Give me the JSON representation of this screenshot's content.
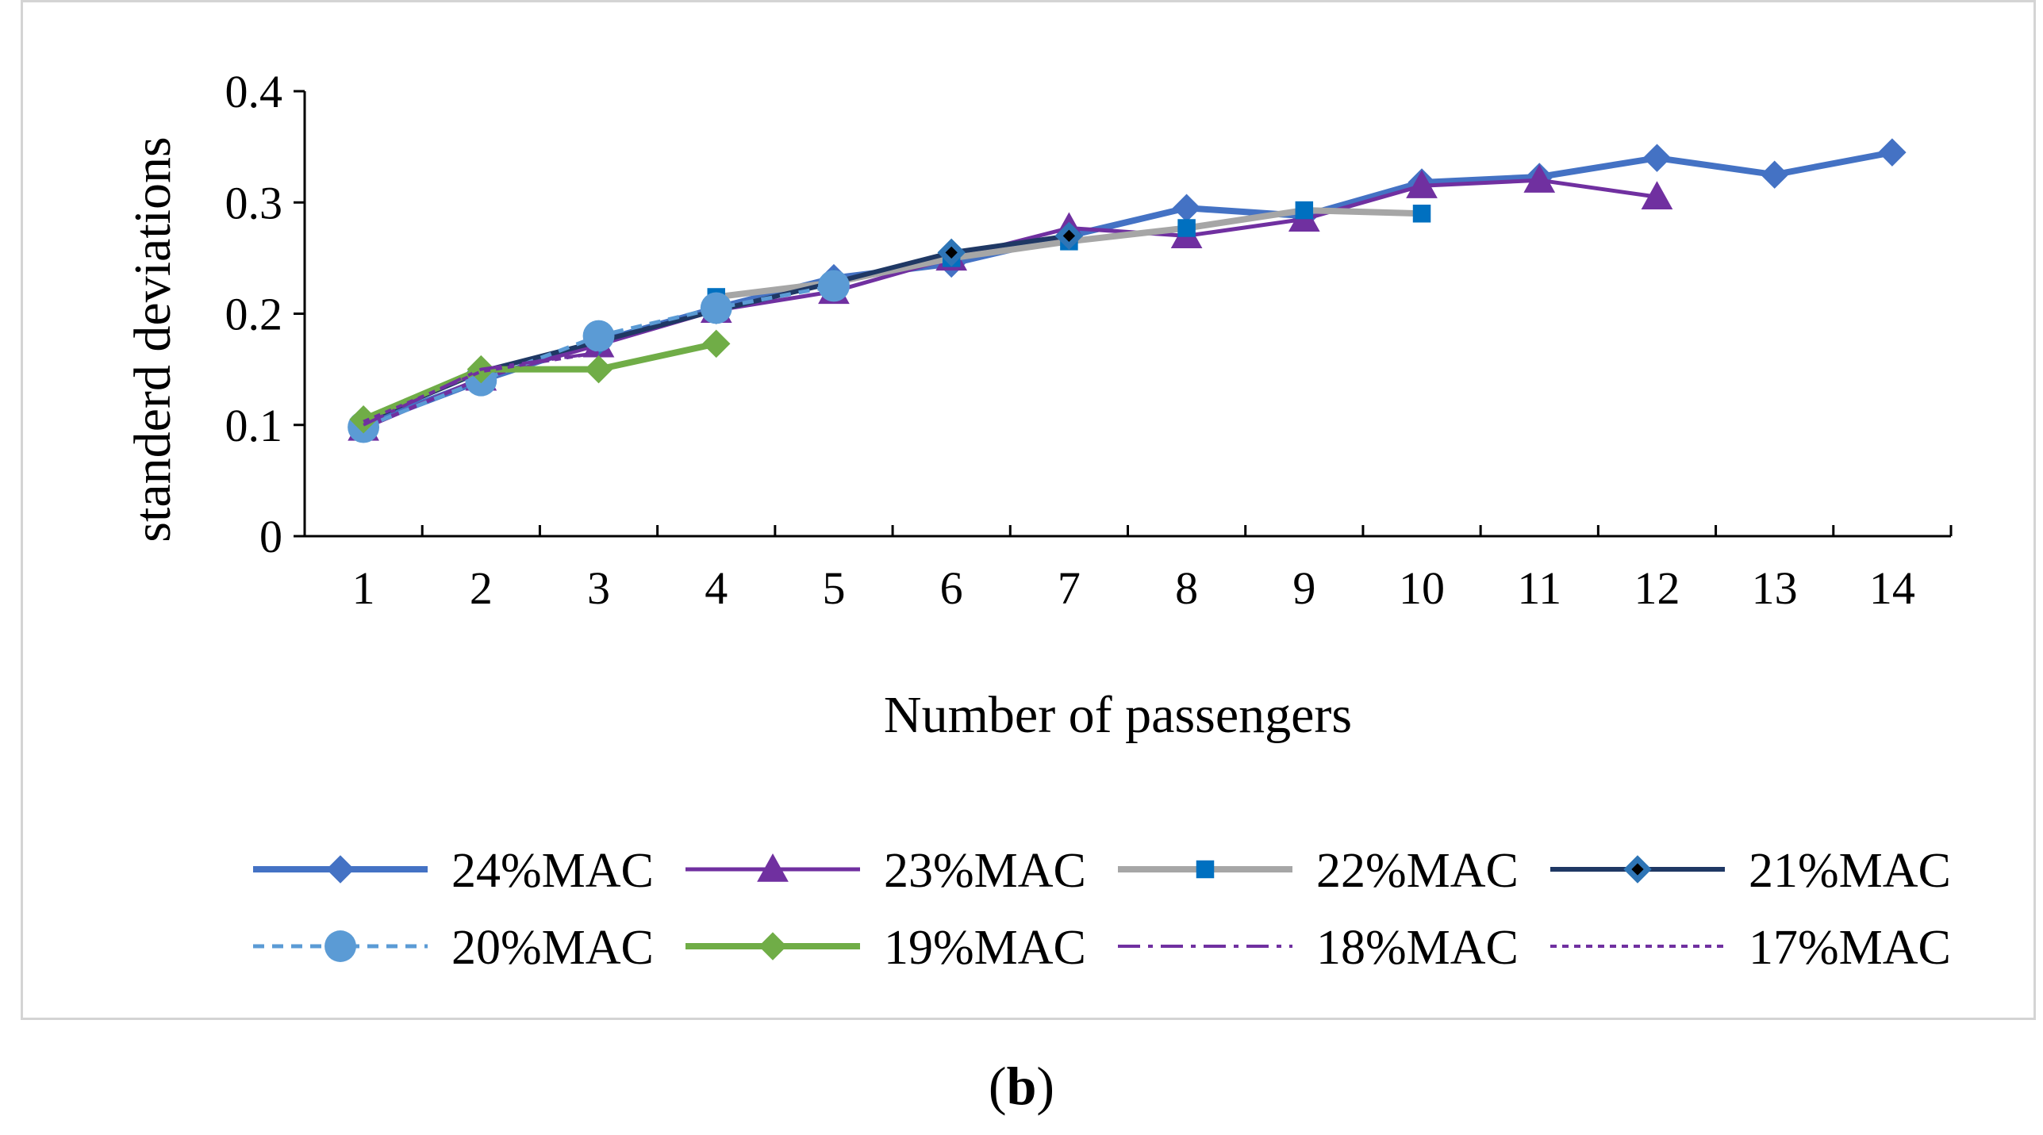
{
  "panel_label": {
    "open": "(",
    "letter": "b",
    "close": ")"
  },
  "chart_data": {
    "type": "line",
    "title": "",
    "xlabel": "Number of passengers",
    "ylabel": "standerd deviations",
    "x_ticks": [
      "1",
      "2",
      "3",
      "4",
      "5",
      "6",
      "7",
      "8",
      "9",
      "10",
      "11",
      "12",
      "13",
      "14"
    ],
    "y_ticks": [
      "0",
      "0.1",
      "0.2",
      "0.3",
      "0.4"
    ],
    "ylim": [
      0,
      0.4
    ],
    "legend_position": "bottom",
    "series": [
      {
        "name": "24%MAC",
        "color": "#4472c4",
        "line": "solid",
        "marker": "diamond",
        "x": [
          1,
          2,
          3,
          4,
          5,
          6,
          7,
          8,
          9,
          10,
          11,
          12,
          13,
          14
        ],
        "y": [
          0.1,
          0.14,
          0.175,
          0.205,
          0.232,
          0.245,
          0.27,
          0.295,
          0.288,
          0.318,
          0.323,
          0.34,
          0.325,
          0.345
        ]
      },
      {
        "name": "23%MAC",
        "color": "#7030a0",
        "line": "solid",
        "marker": "triangle",
        "x": [
          1,
          2,
          3,
          4,
          5,
          6,
          7,
          8,
          9,
          10,
          11,
          12
        ],
        "y": [
          0.097,
          0.142,
          0.172,
          0.203,
          0.22,
          0.25,
          0.277,
          0.27,
          0.285,
          0.315,
          0.32,
          0.305
        ]
      },
      {
        "name": "22%MAC",
        "color": "#a6a6a6",
        "line": "solid",
        "marker": "square",
        "marker_color": "#0070c0",
        "x": [
          4,
          5,
          6,
          7,
          8,
          9,
          10
        ],
        "y": [
          0.215,
          0.228,
          0.25,
          0.265,
          0.277,
          0.293,
          0.29
        ]
      },
      {
        "name": "21%MAC",
        "color": "#1f3864",
        "line": "solid",
        "marker": "diamond-dot",
        "marker_color": "#2e75b6",
        "x": [
          1,
          2,
          3,
          4,
          5,
          6,
          7
        ],
        "y": [
          0.103,
          0.148,
          0.175,
          0.203,
          0.228,
          0.255,
          0.27
        ]
      },
      {
        "name": "20%MAC",
        "color": "#5b9bd5",
        "line": "dashed",
        "marker": "circle",
        "x": [
          1,
          2,
          3,
          4,
          5
        ],
        "y": [
          0.098,
          0.14,
          0.18,
          0.205,
          0.225
        ]
      },
      {
        "name": "19%MAC",
        "color": "#70ad47",
        "line": "solid",
        "marker": "diamond",
        "x": [
          1,
          2,
          3,
          4
        ],
        "y": [
          0.105,
          0.15,
          0.15,
          0.173
        ]
      },
      {
        "name": "18%MAC",
        "color": "#7030a0",
        "line": "dashdot",
        "marker": "none",
        "x": [
          1,
          2,
          3
        ],
        "y": [
          0.1,
          0.15,
          0.165
        ]
      },
      {
        "name": "17%MAC",
        "color": "#7030a0",
        "line": "dotted",
        "marker": "none",
        "x": [
          1,
          2,
          3
        ],
        "y": [
          0.103,
          0.148,
          0.165
        ]
      }
    ]
  }
}
